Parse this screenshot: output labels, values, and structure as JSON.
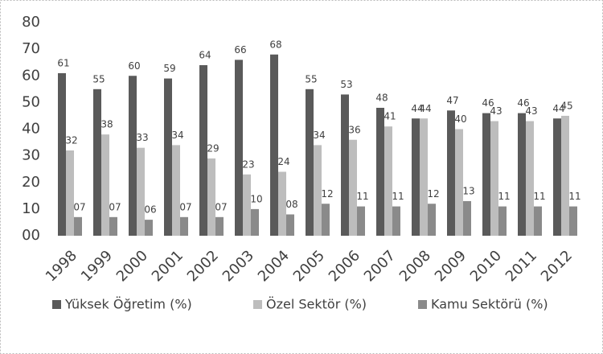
{
  "chart_data": {
    "type": "bar",
    "categories": [
      "1998",
      "1999",
      "2000",
      "2001",
      "2002",
      "2003",
      "2004",
      "2005",
      "2006",
      "2007",
      "2008",
      "2009",
      "2010",
      "2011",
      "2012"
    ],
    "series": [
      {
        "name": "Yüksek Öğretim (%)",
        "color": "#5a5a5a",
        "values": [
          61,
          55,
          60,
          59,
          64,
          66,
          68,
          55,
          53,
          48,
          44,
          47,
          46,
          46,
          44
        ]
      },
      {
        "name": "Özel Sektör (%)",
        "color": "#bdbdbd",
        "values": [
          32,
          38,
          33,
          34,
          29,
          23,
          24,
          34,
          36,
          41,
          44,
          40,
          43,
          43,
          45
        ]
      },
      {
        "name": "Kamu Sektörü (%)",
        "color": "#8a8a8a",
        "values": [
          7,
          7,
          6,
          7,
          7,
          10,
          8,
          12,
          11,
          11,
          12,
          13,
          11,
          11,
          11
        ],
        "value_labels": [
          "07",
          "07",
          "06",
          "07",
          "07",
          "10",
          "08",
          "12",
          "11",
          "11",
          "12",
          "13",
          "11",
          "11",
          "11"
        ]
      }
    ],
    "ylim": [
      0,
      80
    ],
    "yticks": [
      {
        "value": 0,
        "label": "00"
      },
      10,
      20,
      30,
      40,
      50,
      60,
      70,
      80
    ],
    "legend": "bottom"
  }
}
